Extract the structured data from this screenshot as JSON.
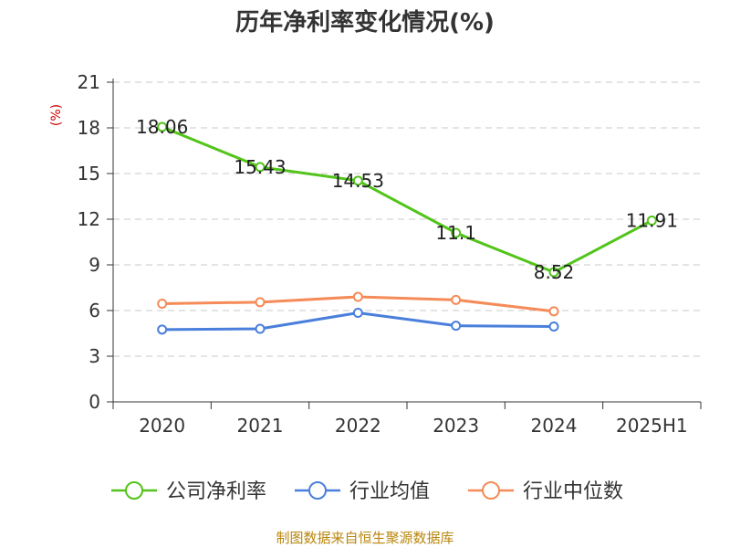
{
  "chart_data": {
    "type": "line",
    "title": "历年净利率变化情况(%)",
    "ylabel": "(%)",
    "categories": [
      "2020",
      "2021",
      "2022",
      "2023",
      "2024",
      "2025H1"
    ],
    "ylim": [
      0,
      21
    ],
    "yticks": [
      "0",
      "3",
      "6",
      "9",
      "12",
      "15",
      "18",
      "21"
    ],
    "grid": true,
    "legend_position": "bottom",
    "series": [
      {
        "name": "公司净利率",
        "color": "#52c41a",
        "values": [
          18.06,
          15.43,
          14.53,
          11.1,
          8.52,
          11.91
        ],
        "labels": [
          "18.06",
          "15.43",
          "14.53",
          "11.1",
          "8.52",
          "11.91"
        ]
      },
      {
        "name": "行业均值",
        "color": "#4a7fdb",
        "values": [
          4.75,
          4.8,
          5.85,
          5.0,
          4.95,
          null
        ]
      },
      {
        "name": "行业中位数",
        "color": "#f58b58",
        "values": [
          6.45,
          6.55,
          6.9,
          6.7,
          5.95,
          null
        ]
      }
    ]
  },
  "source": "制图数据来自恒生聚源数据库"
}
